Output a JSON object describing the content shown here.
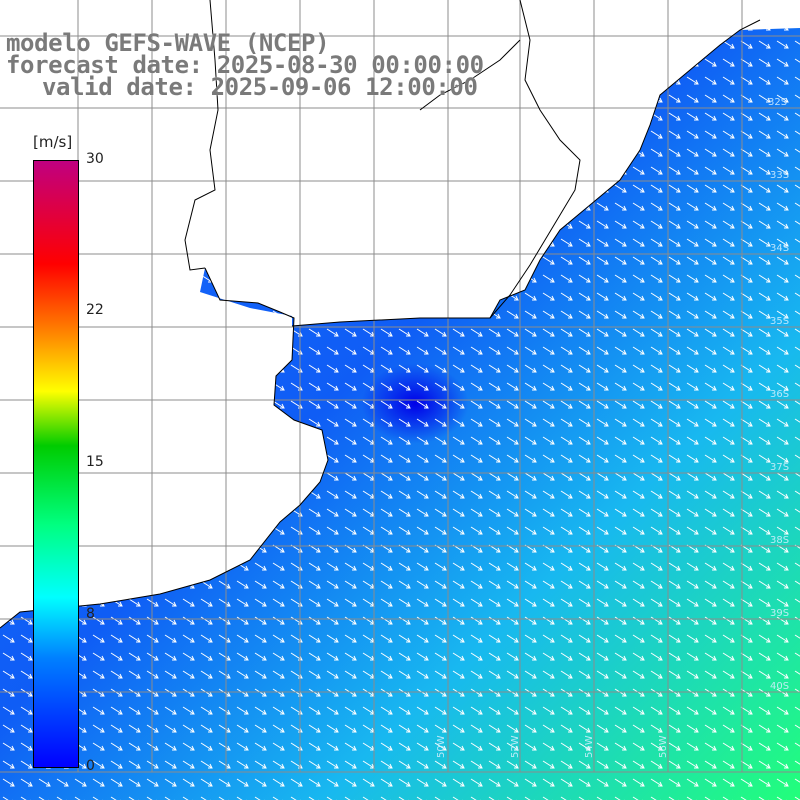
{
  "title": {
    "line1": "modelo GEFS-WAVE (NCEP)",
    "line2": "forecast date: 2025-08-30 00:00:00",
    "line3": "valid date: 2025-09-06 12:00:00"
  },
  "colorbar": {
    "unit": "[m/s]",
    "ticks": [
      {
        "label": "30",
        "value": 30
      },
      {
        "label": "22",
        "value": 22
      },
      {
        "label": "15",
        "value": 15
      },
      {
        "label": "8",
        "value": 8
      },
      {
        "label": "0",
        "value": 0
      }
    ],
    "min": 0,
    "max": 30
  },
  "colors": {
    "land": "#ffffff",
    "grid": "#8c8c8c",
    "coast": "#000000",
    "arrow": "#ffffff"
  },
  "axis_labels": {
    "lon": [
      "50W",
      "52W",
      "54W",
      "56W"
    ],
    "lat": [
      "32S",
      "33S",
      "34S",
      "35S",
      "36S",
      "37S",
      "38S",
      "39S",
      "40S"
    ]
  }
}
